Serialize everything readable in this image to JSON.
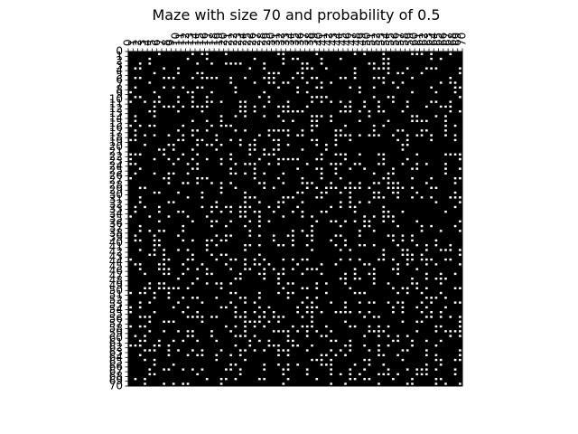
{
  "chart_data": {
    "type": "heatmap",
    "title": "Maze with size 70 and probability of 0.5",
    "xlabel": "",
    "ylabel": "",
    "size": 70,
    "probability": 0.5,
    "x_ticks": [
      0,
      1,
      2,
      3,
      4,
      5,
      6,
      7,
      8,
      9,
      10,
      11,
      12,
      13,
      14,
      15,
      16,
      17,
      18,
      19,
      20,
      21,
      22,
      23,
      24,
      25,
      26,
      27,
      28,
      29,
      30,
      31,
      32,
      33,
      34,
      35,
      36,
      37,
      38,
      39,
      40,
      41,
      42,
      43,
      44,
      45,
      46,
      47,
      48,
      49,
      50,
      51,
      52,
      53,
      54,
      55,
      56,
      57,
      58,
      59,
      60,
      61,
      62,
      63,
      64,
      65,
      66,
      67,
      68,
      69,
      70
    ],
    "y_ticks": [
      0,
      1,
      2,
      3,
      4,
      5,
      6,
      7,
      8,
      9,
      10,
      11,
      12,
      13,
      14,
      15,
      16,
      17,
      18,
      19,
      20,
      21,
      22,
      23,
      24,
      25,
      26,
      27,
      28,
      29,
      30,
      31,
      32,
      33,
      34,
      35,
      36,
      37,
      38,
      39,
      40,
      41,
      42,
      43,
      44,
      45,
      46,
      47,
      48,
      49,
      50,
      51,
      52,
      53,
      54,
      55,
      56,
      57,
      58,
      59,
      60,
      61,
      62,
      63,
      64,
      65,
      66,
      67,
      68,
      69,
      70
    ],
    "x_axis_position": "top",
    "grid": false,
    "legend": "none",
    "colors": {
      "wall": "#000000",
      "open": "#ffffff",
      "background": "#ffffff"
    }
  }
}
